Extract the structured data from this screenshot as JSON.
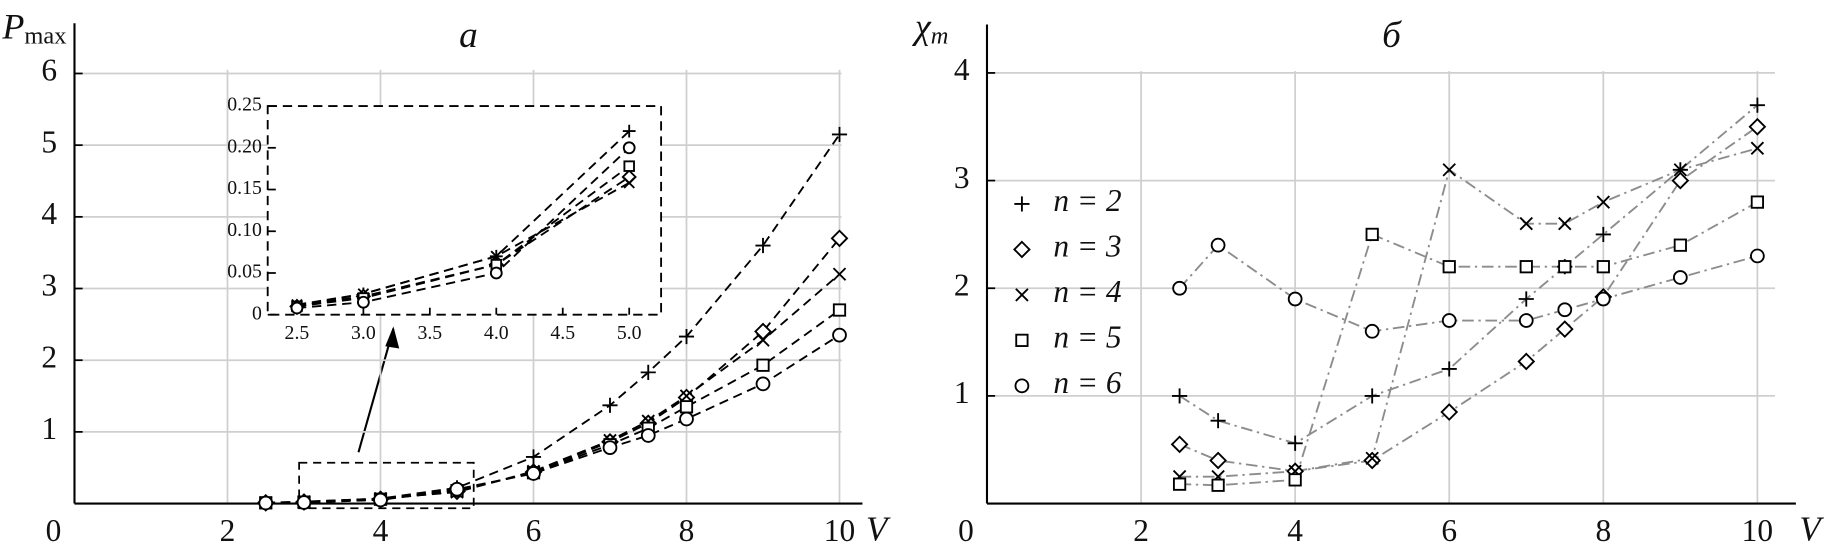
{
  "chart_data": [
    {
      "type": "line",
      "title": "a",
      "x_label": "V",
      "y_label": "P",
      "y_label_sub": "max",
      "x": [
        2.5,
        3,
        4,
        5,
        6,
        7,
        7.5,
        8,
        9,
        10
      ],
      "xlim": [
        0,
        10.3
      ],
      "ylim": [
        0,
        6.7
      ],
      "xticks": [
        0,
        2,
        4,
        6,
        8,
        10
      ],
      "yticks": [
        1,
        2,
        3,
        4,
        5,
        6
      ],
      "grid": true,
      "line_style": "dashed",
      "line_color": "#000000",
      "series": [
        {
          "marker": "plus",
          "color": "#000000",
          "values": [
            0.01,
            0.025,
            0.07,
            0.22,
            0.65,
            1.37,
            1.83,
            2.33,
            3.6,
            5.15
          ]
        },
        {
          "marker": "diamond",
          "color": "#000000",
          "values": [
            0.01,
            0.022,
            0.06,
            0.17,
            0.44,
            0.86,
            1.12,
            1.48,
            2.4,
            3.7
          ]
        },
        {
          "marker": "x",
          "color": "#000000",
          "values": [
            0.012,
            0.025,
            0.07,
            0.16,
            0.45,
            0.88,
            1.15,
            1.5,
            2.28,
            3.2
          ]
        },
        {
          "marker": "square",
          "color": "#000000",
          "values": [
            0.01,
            0.02,
            0.06,
            0.18,
            0.43,
            0.82,
            1.05,
            1.35,
            1.93,
            2.7
          ]
        },
        {
          "marker": "circle",
          "color": "#000000",
          "values": [
            0.008,
            0.015,
            0.05,
            0.2,
            0.42,
            0.78,
            0.95,
            1.18,
            1.67,
            2.35
          ]
        }
      ]
    },
    {
      "type": "line",
      "x": [
        2.5,
        3,
        4,
        5
      ],
      "xlim": [
        2.28,
        5.24
      ],
      "ylim": [
        0,
        0.25
      ],
      "xticks": [
        2.5,
        {
          "value": 3,
          "label": "3.0"
        },
        3.5,
        {
          "value": 4,
          "label": "4.0"
        },
        4.5,
        {
          "value": 5,
          "label": "5.0"
        }
      ],
      "yticks": [
        0,
        0.05,
        {
          "value": 0.1,
          "label": "0.10"
        },
        0.15,
        {
          "value": 0.2,
          "label": "0.20"
        },
        0.25
      ],
      "grid": false,
      "frame": "dashed",
      "line_style": "dashed",
      "line_color": "#000000",
      "series": [
        {
          "marker": "plus",
          "color": "#000000",
          "values": [
            0.01,
            0.025,
            0.07,
            0.22
          ]
        },
        {
          "marker": "diamond",
          "color": "#000000",
          "values": [
            0.01,
            0.022,
            0.06,
            0.165
          ]
        },
        {
          "marker": "x",
          "color": "#000000",
          "values": [
            0.012,
            0.025,
            0.07,
            0.158
          ]
        },
        {
          "marker": "square",
          "color": "#000000",
          "values": [
            0.01,
            0.02,
            0.06,
            0.178
          ]
        },
        {
          "marker": "circle",
          "color": "#000000",
          "values": [
            0.008,
            0.015,
            0.05,
            0.2
          ]
        }
      ]
    },
    {
      "type": "line",
      "title": "б",
      "x_label": "V",
      "y_label": "χ",
      "y_label_sub": "m",
      "x": [
        2.5,
        3,
        4,
        5,
        6,
        7,
        7.5,
        8,
        9,
        10
      ],
      "xlim": [
        0,
        10.5
      ],
      "ylim": [
        0,
        4.45
      ],
      "xticks": [
        0,
        2,
        4,
        6,
        8,
        10
      ],
      "yticks": [
        1,
        2,
        3,
        4
      ],
      "grid": true,
      "line_style": "dashdot",
      "line_color": "#8c8c8c",
      "legend": "center left",
      "series": [
        {
          "name": "n = 2",
          "marker": "plus",
          "color": "#000000",
          "values": [
            1.0,
            0.77,
            0.56,
            1.0,
            1.25,
            1.9,
            2.2,
            2.5,
            3.1,
            3.7
          ]
        },
        {
          "name": "n = 3",
          "marker": "diamond",
          "color": "#000000",
          "values": [
            0.55,
            0.4,
            0.3,
            0.4,
            0.85,
            1.32,
            1.62,
            1.92,
            3.0,
            3.5
          ]
        },
        {
          "name": "n = 4",
          "marker": "x",
          "color": "#000000",
          "values": [
            0.25,
            0.25,
            0.3,
            0.42,
            3.1,
            2.6,
            2.6,
            2.8,
            3.1,
            3.3
          ]
        },
        {
          "name": "n = 5",
          "marker": "square",
          "color": "#000000",
          "values": [
            0.18,
            0.17,
            0.22,
            2.5,
            2.2,
            2.2,
            2.2,
            2.2,
            2.4,
            2.8
          ]
        },
        {
          "name": "n = 6",
          "marker": "circle",
          "color": "#000000",
          "values": [
            2.0,
            2.4,
            1.9,
            1.6,
            1.7,
            1.7,
            1.8,
            1.9,
            2.1,
            2.3
          ]
        }
      ]
    }
  ]
}
